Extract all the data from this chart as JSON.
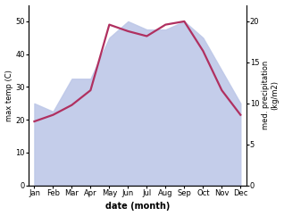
{
  "months": [
    "Jan",
    "Feb",
    "Mar",
    "Apr",
    "May",
    "Jun",
    "Jul",
    "Aug",
    "Sep",
    "Oct",
    "Nov",
    "Dec"
  ],
  "temp": [
    19.5,
    21.5,
    24.5,
    29.0,
    49.0,
    47.0,
    45.5,
    49.0,
    50.0,
    41.0,
    29.0,
    21.5
  ],
  "precip": [
    10,
    9,
    13,
    13,
    18,
    20,
    19,
    19,
    20,
    18,
    14,
    10
  ],
  "temp_color": "#b03060",
  "precip_fill_color": "#bec8e8",
  "left_ylim": [
    0,
    55
  ],
  "right_ylim": [
    0,
    22
  ],
  "left_yticks": [
    0,
    10,
    20,
    30,
    40,
    50
  ],
  "right_yticks": [
    0,
    5,
    10,
    15,
    20
  ],
  "left_ylabel": "max temp (C)",
  "right_ylabel": "med. precipitation\n(kg/m2)",
  "xlabel": "date (month)",
  "bg_color": "#ffffff",
  "temp_linewidth": 1.6
}
